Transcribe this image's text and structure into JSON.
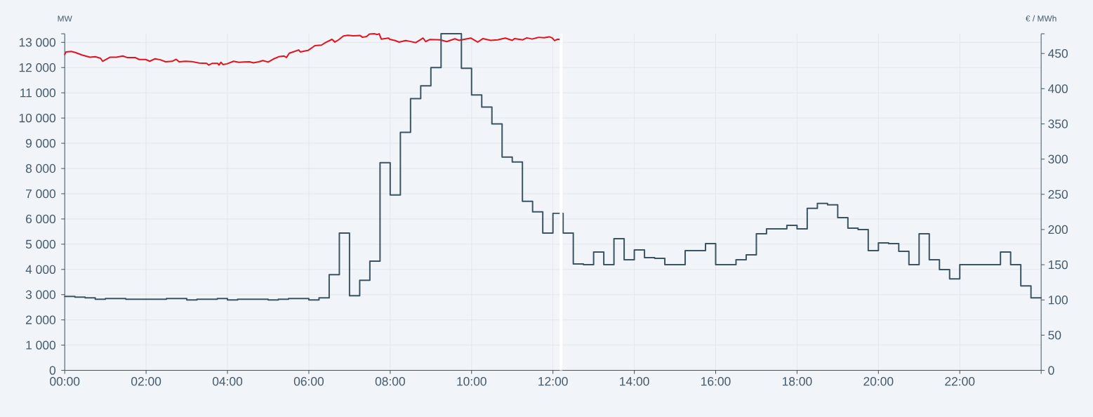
{
  "chart_data": {
    "type": "line",
    "ylabel": "MW",
    "y2label": "€ / MWh",
    "xlim": [
      0,
      24
    ],
    "xticks": [
      {
        "value": 0,
        "label": "00:00"
      },
      {
        "value": 2,
        "label": "02:00"
      },
      {
        "value": 4,
        "label": "04:00"
      },
      {
        "value": 6,
        "label": "06:00"
      },
      {
        "value": 8,
        "label": "08:00"
      },
      {
        "value": 10,
        "label": "10:00"
      },
      {
        "value": 12,
        "label": "12:00"
      },
      {
        "value": 14,
        "label": "14:00"
      },
      {
        "value": 16,
        "label": "16:00"
      },
      {
        "value": 18,
        "label": "18:00"
      },
      {
        "value": 20,
        "label": "20:00"
      },
      {
        "value": 22,
        "label": "22:00"
      },
      {
        "value": 24,
        "label": null
      }
    ],
    "ylim": [
      0,
      13340
    ],
    "yticks": [
      0,
      {
        "value": 1000,
        "label": "1 000"
      },
      {
        "value": 2000,
        "label": "2 000"
      },
      {
        "value": 3000,
        "label": "3 000"
      },
      {
        "value": 4000,
        "label": "4 000"
      },
      {
        "value": 5000,
        "label": "5 000"
      },
      {
        "value": 6000,
        "label": "6 000"
      },
      {
        "value": 7000,
        "label": "7 000"
      },
      {
        "value": 8000,
        "label": "8 000"
      },
      {
        "value": 9000,
        "label": "9 000"
      },
      {
        "value": 10000,
        "label": "10 000"
      },
      {
        "value": 11000,
        "label": "11 000"
      },
      {
        "value": 12000,
        "label": "12 000"
      },
      {
        "value": 13000,
        "label": "13 000"
      },
      {
        "value": 13340,
        "label": null
      }
    ],
    "y2lim": [
      0,
      478
    ],
    "y2ticks": [
      0,
      50,
      100,
      150,
      200,
      250,
      300,
      350,
      400,
      450,
      {
        "value": 478,
        "label": null
      }
    ],
    "grid": true,
    "marker": "none",
    "series": [
      {
        "color": "#e2131f",
        "x": [
          0,
          0.03,
          0.16,
          0.26,
          0.42,
          0.62,
          0.75,
          0.88,
          0.93,
          1.11,
          1.27,
          1.43,
          1.53,
          1.73,
          1.83,
          1.99,
          2.09,
          2.22,
          2.35,
          2.48,
          2.64,
          2.74,
          2.81,
          2.97,
          3.12,
          3.3,
          3.49,
          3.54,
          3.63,
          3.76,
          3.79,
          3.84,
          3.89,
          3.99,
          4.15,
          4.28,
          4.41,
          4.54,
          4.64,
          4.77,
          4.87,
          5.0,
          5.13,
          5.26,
          5.39,
          5.45,
          5.52,
          5.65,
          5.75,
          5.79,
          5.98,
          6.15,
          6.31,
          6.41,
          6.57,
          6.64,
          6.73,
          6.85,
          6.96,
          7.09,
          7.26,
          7.32,
          7.42,
          7.49,
          7.62,
          7.68,
          7.73,
          7.78,
          7.96,
          7.99,
          8.12,
          8.22,
          8.38,
          8.48,
          8.63,
          8.81,
          8.87,
          8.97,
          9.23,
          9.39,
          9.59,
          9.69,
          9.98,
          10.15,
          10.28,
          10.47,
          10.64,
          10.83,
          11.0,
          11.06,
          11.26,
          11.36,
          11.49,
          11.65,
          11.78,
          11.91,
          11.98,
          12.04,
          12.11,
          12.21
        ],
        "values": [
          12520,
          12620,
          12640,
          12600,
          12500,
          12410,
          12430,
          12370,
          12250,
          12410,
          12410,
          12460,
          12400,
          12400,
          12320,
          12320,
          12250,
          12350,
          12310,
          12230,
          12250,
          12330,
          12230,
          12250,
          12240,
          12180,
          12170,
          12100,
          12170,
          12170,
          12100,
          12210,
          12120,
          12150,
          12250,
          12210,
          12220,
          12230,
          12190,
          12230,
          12280,
          12220,
          12340,
          12430,
          12460,
          12400,
          12570,
          12640,
          12700,
          12620,
          12680,
          12870,
          12890,
          12990,
          13120,
          13010,
          13100,
          13250,
          13280,
          13260,
          13270,
          13200,
          13230,
          13330,
          13340,
          13310,
          13340,
          13130,
          13170,
          13120,
          13070,
          13010,
          13070,
          13040,
          12990,
          13170,
          13030,
          13110,
          13100,
          13030,
          13140,
          13080,
          13170,
          13010,
          13150,
          13080,
          13100,
          13170,
          13080,
          13150,
          13100,
          13180,
          13130,
          13200,
          13180,
          13220,
          13180,
          13070,
          13120,
          13120
        ]
      },
      {
        "type": "step",
        "axis": "y2",
        "color": "#3c5461",
        "x": [
          0,
          0.25,
          0.5,
          0.75,
          1,
          1.25,
          1.5,
          1.75,
          2,
          2.25,
          2.5,
          2.75,
          3,
          3.25,
          3.5,
          3.75,
          4,
          4.25,
          4.5,
          4.75,
          5,
          5.25,
          5.5,
          5.75,
          6,
          6.25,
          6.5,
          6.75,
          7,
          7.25,
          7.5,
          7.75,
          8,
          8.25,
          8.5,
          8.75,
          9,
          9.25,
          9.5,
          9.75,
          10,
          10.25,
          10.5,
          10.75,
          11,
          11.25,
          11.5,
          11.75,
          12,
          12.25,
          12.5,
          12.75,
          13,
          13.25,
          13.5,
          13.75,
          14,
          14.25,
          14.5,
          14.75,
          15,
          15.25,
          15.5,
          15.75,
          16,
          16.25,
          16.5,
          16.75,
          17,
          17.25,
          17.5,
          17.75,
          18,
          18.25,
          18.5,
          18.75,
          19,
          19.25,
          19.5,
          19.75,
          20,
          20.25,
          20.5,
          20.75,
          21,
          21.25,
          21.5,
          21.75,
          22,
          22.25,
          22.5,
          22.75,
          23,
          23.25,
          23.5,
          23.75,
          24
        ],
        "values": [
          105,
          104,
          103,
          101,
          102,
          102,
          101,
          101,
          101,
          101,
          102,
          102,
          100,
          101,
          101,
          102,
          100,
          101,
          101,
          101,
          100,
          101,
          102,
          102,
          100,
          103,
          136,
          195,
          106,
          128,
          155,
          295,
          249,
          338,
          386,
          404,
          430,
          478,
          478,
          429,
          391,
          374,
          350,
          303,
          296,
          240,
          225,
          195,
          223,
          195,
          151,
          150,
          168,
          150,
          187,
          157,
          171,
          160,
          159,
          150,
          150,
          170,
          170,
          180,
          150,
          150,
          157,
          164,
          194,
          201,
          201,
          206,
          201,
          230,
          237,
          235,
          217,
          202,
          200,
          170,
          181,
          180,
          169,
          150,
          194,
          157,
          143,
          130,
          150,
          150,
          150,
          150,
          168,
          150,
          120,
          103,
          103
        ]
      }
    ],
    "ref_lines": [
      {
        "axis": "x",
        "value": 12.2,
        "color": "#ffffff"
      }
    ]
  }
}
